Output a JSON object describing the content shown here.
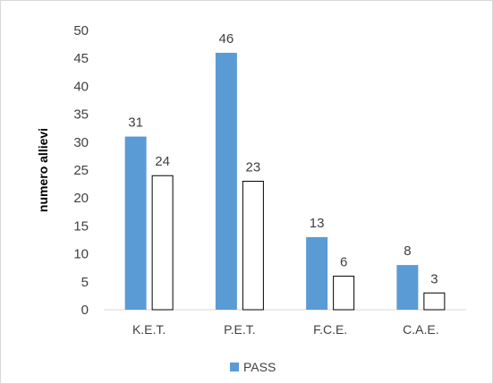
{
  "chart_data": {
    "type": "bar",
    "categories": [
      "K.E.T.",
      "P.E.T.",
      "F.C.E.",
      "C.A.E."
    ],
    "series": [
      {
        "name": "PASS",
        "values": [
          31,
          46,
          13,
          8
        ],
        "color": "#5b9bd5",
        "style": "filled"
      },
      {
        "values": [
          24,
          23,
          6,
          3
        ],
        "color": "#ffffff",
        "style": "outline"
      }
    ],
    "ylabel": "numero allievi",
    "xlabel": "",
    "ylim": [
      0,
      50
    ],
    "yticks": [
      "0",
      "5",
      "10",
      "15",
      "20",
      "25",
      "30",
      "35",
      "40",
      "45",
      "50"
    ],
    "grid": false,
    "legend": {
      "position": "bottom",
      "entries": [
        "PASS"
      ]
    },
    "data_labels": true
  }
}
